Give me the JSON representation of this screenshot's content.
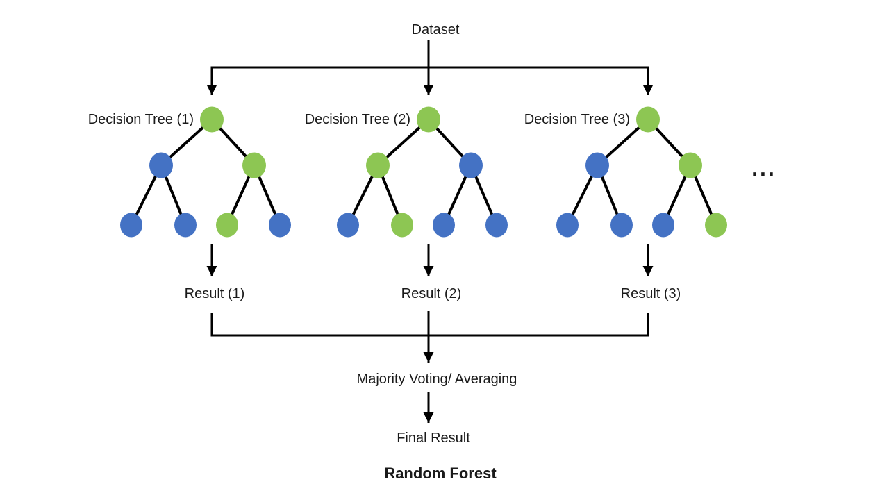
{
  "title": "Random Forest",
  "dataset_label": "Dataset",
  "ellipsis": "...",
  "aggregation_label": "Majority Voting/ Averaging",
  "final_result_label": "Final Result",
  "palette": {
    "green": "#8DC653",
    "blue": "#4472C4",
    "line": "#000000"
  },
  "trees": [
    {
      "label": "Decision Tree (1)",
      "result_label": "Result (1)",
      "node_colors": [
        "green",
        "blue",
        "green",
        "blue",
        "blue",
        "green",
        "blue"
      ]
    },
    {
      "label": "Decision Tree (2)",
      "result_label": "Result (2)",
      "node_colors": [
        "green",
        "green",
        "blue",
        "blue",
        "green",
        "blue",
        "blue"
      ]
    },
    {
      "label": "Decision Tree (3)",
      "result_label": "Result (3)",
      "node_colors": [
        "green",
        "blue",
        "green",
        "blue",
        "blue",
        "blue",
        "green"
      ]
    }
  ]
}
